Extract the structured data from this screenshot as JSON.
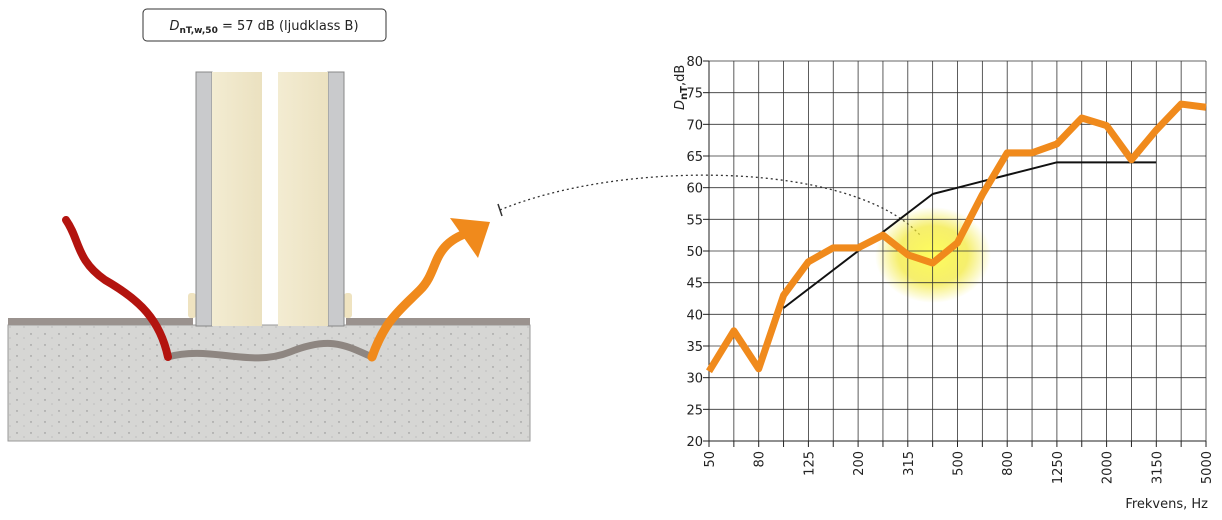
{
  "annotation": {
    "symbol": "D",
    "subscript": "nT,w,50",
    "rest": " = 57 dB (ljudklass B)"
  },
  "chart_data": {
    "type": "line",
    "ylabel": {
      "symbol": "D",
      "subscript": "nT",
      "unit": ",dB"
    },
    "xlabel": "Frekvens, Hz",
    "categories": [
      "50",
      null,
      "80",
      null,
      "125",
      null,
      "200",
      null,
      "315",
      null,
      "500",
      null,
      "800",
      null,
      "1250",
      null,
      "2000",
      null,
      "3150",
      null,
      "5000"
    ],
    "series": [
      {
        "color": "#f08a1c",
        "values": [
          31,
          37.4,
          31.4,
          43,
          48.3,
          50.5,
          50.5,
          52.5,
          49.4,
          48.1,
          51.3,
          58.9,
          65.5,
          65.5,
          66.9,
          71,
          69.8,
          64.4,
          69.1,
          73.2,
          72.7
        ]
      },
      {
        "color": "#111111",
        "values": [
          null,
          null,
          null,
          41,
          44,
          47,
          50,
          53,
          56,
          59,
          60,
          61,
          62,
          63,
          64,
          64,
          64,
          64,
          64,
          null,
          null
        ]
      }
    ],
    "ylim": [
      20,
      80
    ],
    "yticks": [
      20,
      25,
      30,
      35,
      40,
      45,
      50,
      55,
      60,
      65,
      70,
      75,
      80
    ],
    "grid": true
  }
}
